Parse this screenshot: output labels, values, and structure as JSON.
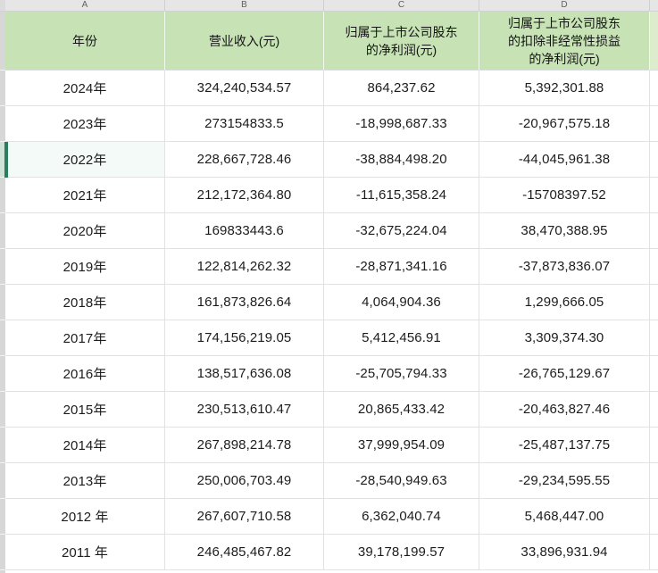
{
  "column_letters": [
    "A",
    "B",
    "C",
    "D"
  ],
  "headers": {
    "year": "年份",
    "revenue": "营业收入(元)",
    "profit": "归属于上市公司股东\n的净利润(元)",
    "deducted": "归属于上市公司股东\n的扣除非经常性损益\n的净利润(元)"
  },
  "rows": [
    {
      "year": "2024年",
      "revenue": "324,240,534.57",
      "profit": "864,237.62",
      "deducted": "5,392,301.88"
    },
    {
      "year": "2023年",
      "revenue": "273154833.5",
      "profit": "-18,998,687.33",
      "deducted": "-20,967,575.18"
    },
    {
      "year": "2022年",
      "revenue": "228,667,728.46",
      "profit": "-38,884,498.20",
      "deducted": "-44,045,961.38"
    },
    {
      "year": "2021年",
      "revenue": "212,172,364.80",
      "profit": "-11,615,358.24",
      "deducted": "-15708397.52"
    },
    {
      "year": "2020年",
      "revenue": "169833443.6",
      "profit": "-32,675,224.04",
      "deducted": "38,470,388.95"
    },
    {
      "year": "2019年",
      "revenue": "122,814,262.32",
      "profit": "-28,871,341.16",
      "deducted": "-37,873,836.07"
    },
    {
      "year": "2018年",
      "revenue": "161,873,826.64",
      "profit": "4,064,904.36",
      "deducted": "1,299,666.05"
    },
    {
      "year": "2017年",
      "revenue": "174,156,219.05",
      "profit": "5,412,456.91",
      "deducted": "3,309,374.30"
    },
    {
      "year": "2016年",
      "revenue": "138,517,636.08",
      "profit": "-25,705,794.33",
      "deducted": "-26,765,129.67"
    },
    {
      "year": "2015年",
      "revenue": "230,513,610.47",
      "profit": "20,865,433.42",
      "deducted": "-20,463,827.46"
    },
    {
      "year": "2014年",
      "revenue": "267,898,214.78",
      "profit": "37,999,954.09",
      "deducted": "-25,487,137.75"
    },
    {
      "year": "2013年",
      "revenue": "250,006,703.49",
      "profit": "-28,540,949.63",
      "deducted": "-29,234,595.55"
    },
    {
      "year": "2012 年",
      "revenue": "267,607,710.58",
      "profit": "6,362,040.74",
      "deducted": "5,468,447.00"
    },
    {
      "year": "2011 年",
      "revenue": "246,485,467.82",
      "profit": "39,178,199.57",
      "deducted": "33,896,931.94"
    }
  ],
  "colors": {
    "header_fill": "#c7e3b5",
    "header_fill_light": "#ddeccd",
    "selection_accent": "#2a7e5f",
    "gridline": "#e2e2e2"
  }
}
